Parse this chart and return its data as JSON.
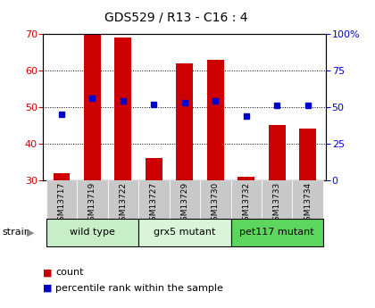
{
  "title": "GDS529 / R13 - C16 : 4",
  "samples": [
    "GSM13717",
    "GSM13719",
    "GSM13722",
    "GSM13727",
    "GSM13729",
    "GSM13730",
    "GSM13732",
    "GSM13733",
    "GSM13734"
  ],
  "count_values": [
    32,
    70,
    69,
    36,
    62,
    63,
    31,
    45,
    44
  ],
  "percentile_values": [
    45,
    56,
    54,
    52,
    53,
    54,
    44,
    51,
    51
  ],
  "ylim_left": [
    30,
    70
  ],
  "ylim_right": [
    0,
    100
  ],
  "yticks_left": [
    30,
    40,
    50,
    60,
    70
  ],
  "yticks_right": [
    0,
    25,
    50,
    75,
    100
  ],
  "ytick_labels_right": [
    "0",
    "25",
    "50",
    "75",
    "100%"
  ],
  "groups": [
    {
      "label": "wild type",
      "indices": [
        0,
        1,
        2
      ],
      "color": "#c8eec8"
    },
    {
      "label": "grx5 mutant",
      "indices": [
        3,
        4,
        5
      ],
      "color": "#d8f5d8"
    },
    {
      "label": "pet117 mutant",
      "indices": [
        6,
        7,
        8
      ],
      "color": "#5cd65c"
    }
  ],
  "bar_color": "#cc0000",
  "dot_color": "#0000cc",
  "bar_width": 0.55,
  "count_label": "count",
  "percentile_label": "percentile rank within the sample",
  "strain_label": "strain",
  "left_axis_color": "#cc0000",
  "right_axis_color": "#0000cc",
  "background_label": "#c8c8c8"
}
